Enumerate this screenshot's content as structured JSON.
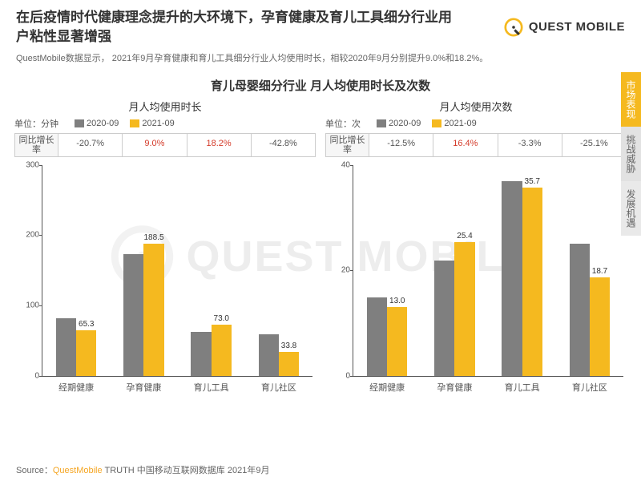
{
  "header": {
    "title": "在后疫情时代健康理念提升的大环境下，孕育健康及育儿工具细分行业用户粘性显著增强",
    "logo_text": "QUEST MOBILE",
    "subtitle": "QuestMobile数据显示，   2021年9月孕育健康和育儿工具细分行业人均使用时长，相较2020年9月分别提升9.0%和18.2%。"
  },
  "section_title": "育儿母婴细分行业 月人均使用时长及次数",
  "legend": {
    "series_a_label": "2020-09",
    "series_b_label": "2021-09",
    "color_a": "#7f7f7f",
    "color_b": "#f5b91f"
  },
  "growth_header": "同比增长率",
  "categories": [
    "经期健康",
    "孕育健康",
    "育儿工具",
    "育儿社区"
  ],
  "chart_left": {
    "title": "月人均使用时长",
    "unit": "单位：分钟",
    "growth": [
      {
        "text": "-20.7%",
        "color": "#555"
      },
      {
        "text": "9.0%",
        "color": "#d43b2a"
      },
      {
        "text": "18.2%",
        "color": "#d43b2a"
      },
      {
        "text": "-42.8%",
        "color": "#555"
      }
    ],
    "ymax": 300,
    "ytick_step": 100,
    "series_a": [
      82,
      173,
      62,
      59
    ],
    "series_b": [
      65.3,
      188.5,
      73.0,
      33.8
    ],
    "labels_b": [
      "65.3",
      "188.5",
      "73.0",
      "33.8"
    ],
    "bar_width": 0.3
  },
  "chart_right": {
    "title": "月人均使用次数",
    "unit": "单位：次",
    "growth": [
      {
        "text": "-12.5%",
        "color": "#555"
      },
      {
        "text": "16.4%",
        "color": "#d43b2a"
      },
      {
        "text": "-3.3%",
        "color": "#555"
      },
      {
        "text": "-25.1%",
        "color": "#555"
      }
    ],
    "ymax": 40,
    "ytick_step": 20,
    "series_a": [
      14.8,
      21.8,
      36.9,
      25.0
    ],
    "series_b": [
      13.0,
      25.4,
      35.7,
      18.7
    ],
    "labels_b": [
      "13.0",
      "25.4",
      "35.7",
      "18.7"
    ],
    "bar_width": 0.3
  },
  "source": {
    "prefix": "Source：",
    "brand": "QuestMobile",
    "rest": " TRUTH 中国移动互联网数据库 2021年9月"
  },
  "side_tabs": [
    {
      "label": "市场表现",
      "bg": "#f5b91f",
      "color": "#fff"
    },
    {
      "label": "挑战威胁",
      "bg": "#e2e2e2",
      "color": "#666"
    },
    {
      "label": "发展机遇",
      "bg": "#e9e9e9",
      "color": "#666"
    }
  ],
  "watermark": "QUEST MOBILE",
  "style": {
    "title_fontsize": 17,
    "label_fontsize": 11,
    "background": "#ffffff"
  }
}
